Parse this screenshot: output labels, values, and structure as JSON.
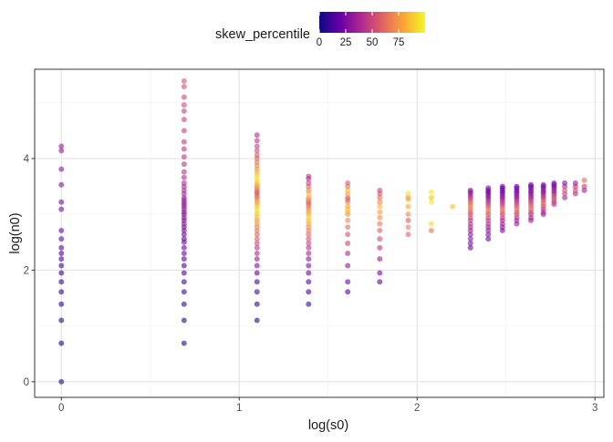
{
  "chart_data": {
    "type": "scatter",
    "xlabel": "log(s0)",
    "ylabel": "log(n0)",
    "xlim": [
      -0.15,
      3.05
    ],
    "ylim": [
      -0.28,
      5.6
    ],
    "x_ticks": [
      0,
      1,
      2,
      3
    ],
    "y_ticks": [
      0,
      2,
      4
    ],
    "grid": true,
    "legend": {
      "title": "skew_percentile",
      "type": "colorbar",
      "placement": "top",
      "range": [
        0,
        100
      ],
      "ticks": [
        0,
        25,
        50,
        75
      ],
      "palette": [
        "#0d0887",
        "#6a00a8",
        "#b12a90",
        "#e16462",
        "#fca636",
        "#f0f921"
      ]
    },
    "point_opacity": 0.6,
    "columns": [
      {
        "x": 0.0,
        "y": [
          0.0,
          0.69,
          1.1,
          1.39,
          1.61,
          1.79,
          1.95,
          2.08,
          2.2,
          2.3,
          2.4,
          2.56,
          2.71,
          3.09,
          3.22,
          3.53,
          3.81,
          4.14,
          4.22
        ],
        "skew": [
          2,
          3,
          4,
          5,
          6,
          8,
          10,
          12,
          14,
          16,
          18,
          20,
          22,
          24,
          26,
          28,
          30,
          32,
          34
        ]
      },
      {
        "x": 0.69,
        "y": [
          0.69,
          1.1,
          1.39,
          1.61,
          1.79,
          1.95,
          2.08,
          2.2,
          2.3,
          2.4,
          2.5,
          2.56,
          2.64,
          2.71,
          2.77,
          2.83,
          2.89,
          2.94,
          3.0,
          3.04,
          3.09,
          3.14,
          3.18,
          3.22,
          3.26,
          3.3,
          3.37,
          3.43,
          3.5,
          3.56,
          3.66,
          3.76,
          3.9,
          4.03,
          4.17,
          4.3,
          4.5,
          4.7,
          4.85,
          4.96,
          5.1,
          5.29,
          5.39
        ],
        "skew": [
          4,
          5,
          6,
          8,
          10,
          12,
          14,
          16,
          18,
          20,
          20,
          22,
          22,
          24,
          24,
          26,
          26,
          28,
          28,
          30,
          30,
          32,
          32,
          34,
          34,
          36,
          36,
          38,
          38,
          40,
          40,
          42,
          42,
          44,
          44,
          46,
          46,
          48,
          48,
          50,
          50,
          52,
          54
        ]
      },
      {
        "x": 1.1,
        "y": [
          1.1,
          1.39,
          1.61,
          1.79,
          1.95,
          2.08,
          2.2,
          2.3,
          2.4,
          2.48,
          2.56,
          2.64,
          2.71,
          2.77,
          2.83,
          2.89,
          2.94,
          3.0,
          3.04,
          3.09,
          3.14,
          3.18,
          3.22,
          3.26,
          3.3,
          3.33,
          3.37,
          3.4,
          3.43,
          3.47,
          3.5,
          3.53,
          3.56,
          3.61,
          3.66,
          3.71,
          3.76,
          3.81,
          3.87,
          3.93,
          4.0,
          4.06,
          4.14,
          4.22,
          4.32,
          4.42
        ],
        "skew": [
          4,
          6,
          10,
          14,
          20,
          26,
          32,
          38,
          44,
          50,
          56,
          60,
          64,
          70,
          74,
          78,
          84,
          88,
          92,
          95,
          90,
          85,
          80,
          75,
          70,
          65,
          60,
          55,
          62,
          68,
          74,
          80,
          86,
          92,
          95,
          90,
          84,
          78,
          72,
          66,
          60,
          56,
          52,
          48,
          44,
          40
        ]
      },
      {
        "x": 1.39,
        "y": [
          1.39,
          1.61,
          1.79,
          1.95,
          2.08,
          2.2,
          2.3,
          2.4,
          2.48,
          2.56,
          2.64,
          2.71,
          2.77,
          2.83,
          2.89,
          2.94,
          3.0,
          3.04,
          3.09,
          3.14,
          3.18,
          3.22,
          3.26,
          3.3,
          3.37,
          3.43,
          3.5,
          3.56,
          3.64,
          3.68
        ],
        "skew": [
          6,
          10,
          14,
          20,
          26,
          30,
          36,
          42,
          48,
          54,
          60,
          66,
          72,
          78,
          84,
          90,
          86,
          80,
          74,
          68,
          62,
          56,
          66,
          76,
          86,
          70,
          60,
          50,
          40,
          44
        ]
      },
      {
        "x": 1.61,
        "y": [
          1.61,
          1.79,
          2.08,
          2.3,
          2.48,
          2.64,
          2.77,
          2.89,
          3.0,
          3.04,
          3.09,
          3.14,
          3.22,
          3.26,
          3.3,
          3.37,
          3.43,
          3.5,
          3.56
        ],
        "skew": [
          14,
          20,
          30,
          40,
          48,
          56,
          62,
          70,
          76,
          82,
          88,
          80,
          72,
          64,
          56,
          76,
          86,
          66,
          58
        ]
      },
      {
        "x": 1.79,
        "y": [
          1.79,
          1.95,
          2.2,
          2.4,
          2.56,
          2.71,
          2.83,
          2.94,
          3.04,
          3.14,
          3.22,
          3.3,
          3.37,
          3.43
        ],
        "skew": [
          16,
          22,
          34,
          42,
          50,
          58,
          66,
          72,
          78,
          84,
          70,
          62,
          56,
          50
        ]
      },
      {
        "x": 1.95,
        "y": [
          2.64,
          2.77,
          2.89,
          3.0,
          3.14,
          3.26,
          3.3,
          3.37
        ],
        "skew": [
          60,
          68,
          56,
          72,
          80,
          88,
          74,
          94
        ]
      },
      {
        "x": 2.08,
        "y": [
          2.71,
          2.83,
          3.22,
          3.3,
          3.4
        ],
        "skew": [
          64,
          92,
          96,
          86,
          96
        ]
      },
      {
        "x": 2.2,
        "y": [
          3.14
        ],
        "skew": [
          86
        ]
      },
      {
        "x": 2.3,
        "y": [
          2.4,
          2.48,
          2.56,
          2.64,
          2.71,
          2.77,
          2.83,
          2.89,
          2.94,
          3.0,
          3.04,
          3.09,
          3.14,
          3.18,
          3.22,
          3.26,
          3.3,
          3.33,
          3.37,
          3.4,
          3.43
        ],
        "skew": [
          20,
          24,
          28,
          30,
          34,
          38,
          42,
          46,
          50,
          54,
          58,
          62,
          66,
          70,
          60,
          54,
          48,
          42,
          36,
          32,
          28
        ]
      },
      {
        "x": 2.4,
        "y": [
          2.56,
          2.64,
          2.71,
          2.77,
          2.83,
          2.89,
          2.94,
          3.0,
          3.04,
          3.09,
          3.14,
          3.18,
          3.22,
          3.26,
          3.3,
          3.33,
          3.37,
          3.4,
          3.43,
          3.47
        ],
        "skew": [
          22,
          26,
          30,
          34,
          40,
          46,
          52,
          56,
          62,
          66,
          58,
          52,
          46,
          40,
          34,
          30,
          26,
          24,
          22,
          20
        ]
      },
      {
        "x": 2.48,
        "y": [
          2.71,
          2.77,
          2.83,
          2.89,
          2.94,
          3.0,
          3.04,
          3.09,
          3.14,
          3.18,
          3.22,
          3.26,
          3.3,
          3.33,
          3.37,
          3.4,
          3.43,
          3.47,
          3.5
        ],
        "skew": [
          24,
          28,
          34,
          40,
          46,
          52,
          58,
          64,
          58,
          50,
          44,
          38,
          32,
          28,
          26,
          24,
          22,
          20,
          18
        ]
      },
      {
        "x": 2.56,
        "y": [
          2.83,
          2.89,
          2.94,
          3.0,
          3.04,
          3.09,
          3.14,
          3.18,
          3.22,
          3.26,
          3.3,
          3.33,
          3.37,
          3.4,
          3.43,
          3.47,
          3.5
        ],
        "skew": [
          30,
          36,
          42,
          50,
          56,
          62,
          58,
          52,
          46,
          40,
          34,
          30,
          28,
          26,
          24,
          22,
          20
        ]
      },
      {
        "x": 2.64,
        "y": [
          2.89,
          2.94,
          3.0,
          3.04,
          3.09,
          3.14,
          3.18,
          3.22,
          3.26,
          3.3,
          3.33,
          3.37,
          3.4,
          3.43,
          3.47,
          3.5,
          3.53
        ],
        "skew": [
          30,
          36,
          44,
          50,
          56,
          62,
          56,
          50,
          44,
          38,
          34,
          30,
          28,
          26,
          24,
          22,
          20
        ]
      },
      {
        "x": 2.71,
        "y": [
          3.0,
          3.04,
          3.09,
          3.14,
          3.18,
          3.22,
          3.26,
          3.3,
          3.33,
          3.37,
          3.4,
          3.43,
          3.47,
          3.5,
          3.53
        ],
        "skew": [
          30,
          36,
          44,
          52,
          58,
          62,
          56,
          48,
          42,
          36,
          32,
          28,
          26,
          24,
          22
        ]
      },
      {
        "x": 2.77,
        "y": [
          3.18,
          3.22,
          3.26,
          3.3,
          3.33,
          3.37,
          3.4,
          3.43,
          3.47,
          3.5,
          3.53,
          3.56
        ],
        "skew": [
          40,
          46,
          52,
          56,
          50,
          44,
          38,
          34,
          30,
          26,
          24,
          22
        ]
      },
      {
        "x": 2.83,
        "y": [
          3.3,
          3.37,
          3.43,
          3.5,
          3.56
        ],
        "skew": [
          36,
          48,
          56,
          40,
          28
        ]
      },
      {
        "x": 2.89,
        "y": [
          3.37,
          3.43,
          3.5,
          3.56
        ],
        "skew": [
          38,
          52,
          44,
          32
        ]
      },
      {
        "x": 2.94,
        "y": [
          3.43,
          3.5,
          3.61
        ],
        "skew": [
          34,
          46,
          60
        ]
      }
    ]
  }
}
